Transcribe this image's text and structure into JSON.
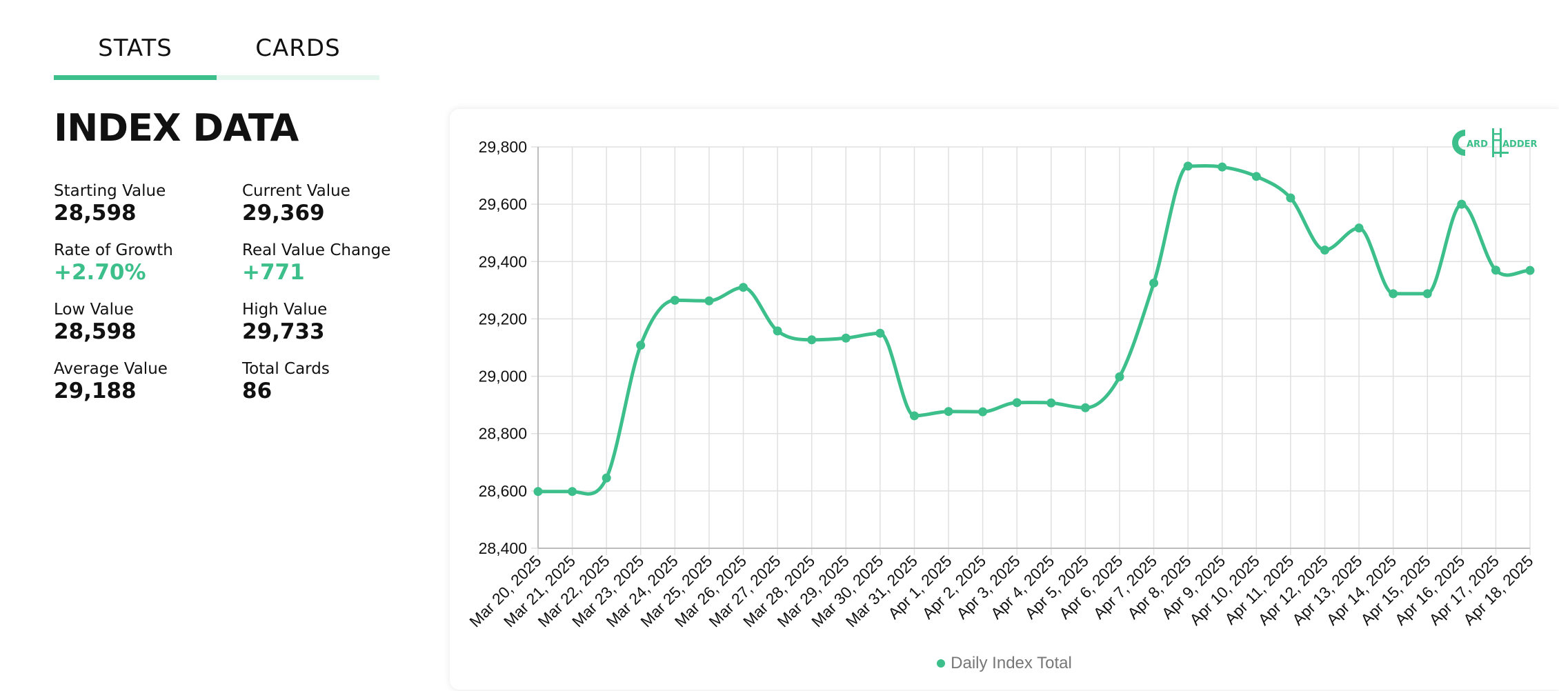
{
  "tabs": [
    {
      "label": "STATS",
      "active": true
    },
    {
      "label": "CARDS",
      "active": false
    }
  ],
  "index": {
    "title": "INDEX DATA",
    "stats": [
      {
        "label": "Starting Value",
        "value": "28,598",
        "positive": false
      },
      {
        "label": "Current Value",
        "value": "29,369",
        "positive": false
      },
      {
        "label": "Rate of Growth",
        "value": "+2.70%",
        "positive": true
      },
      {
        "label": "Real Value Change",
        "value": "+771",
        "positive": true
      },
      {
        "label": "Low Value",
        "value": "28,598",
        "positive": false
      },
      {
        "label": "High Value",
        "value": "29,733",
        "positive": false
      },
      {
        "label": "Average Value",
        "value": "29,188",
        "positive": false
      },
      {
        "label": "Total Cards",
        "value": "86",
        "positive": false
      }
    ]
  },
  "brand": {
    "logo_icon": "card-ladder-logo",
    "logo_text_left": "ARD",
    "logo_text_right": "ADDER"
  },
  "colors": {
    "accent": "#3cbf8a",
    "accent_light": "#e5f6ef",
    "text": "#111111",
    "grid": "#e0e0e0"
  },
  "chart_data": {
    "type": "line",
    "title": "",
    "xlabel": "",
    "ylabel": "",
    "ylim": [
      28400,
      29800
    ],
    "yticks": [
      28400,
      28600,
      28800,
      29000,
      29200,
      29400,
      29600,
      29800
    ],
    "ytick_labels": [
      "28,400",
      "28,600",
      "28,800",
      "29,000",
      "29,200",
      "29,400",
      "29,600",
      "29,800"
    ],
    "grid": true,
    "legend": "bottom-center",
    "categories": [
      "Mar 20, 2025",
      "Mar 21, 2025",
      "Mar 22, 2025",
      "Mar 23, 2025",
      "Mar 24, 2025",
      "Mar 25, 2025",
      "Mar 26, 2025",
      "Mar 27, 2025",
      "Mar 28, 2025",
      "Mar 29, 2025",
      "Mar 30, 2025",
      "Mar 31, 2025",
      "Apr 1, 2025",
      "Apr 2, 2025",
      "Apr 3, 2025",
      "Apr 4, 2025",
      "Apr 5, 2025",
      "Apr 6, 2025",
      "Apr 7, 2025",
      "Apr 8, 2025",
      "Apr 9, 2025",
      "Apr 10, 2025",
      "Apr 11, 2025",
      "Apr 12, 2025",
      "Apr 13, 2025",
      "Apr 14, 2025",
      "Apr 15, 2025",
      "Apr 16, 2025",
      "Apr 17, 2025",
      "Apr 18, 2025"
    ],
    "series": [
      {
        "name": "Daily Index Total",
        "color": "#3cbf8a",
        "values": [
          28598,
          28598,
          28645,
          29108,
          29265,
          29263,
          29310,
          29158,
          29127,
          29133,
          29150,
          28862,
          28877,
          28876,
          28908,
          28907,
          28890,
          28998,
          29325,
          29733,
          29730,
          29697,
          29622,
          29440,
          29517,
          29288,
          29288,
          29600,
          29370,
          29369
        ]
      }
    ]
  }
}
